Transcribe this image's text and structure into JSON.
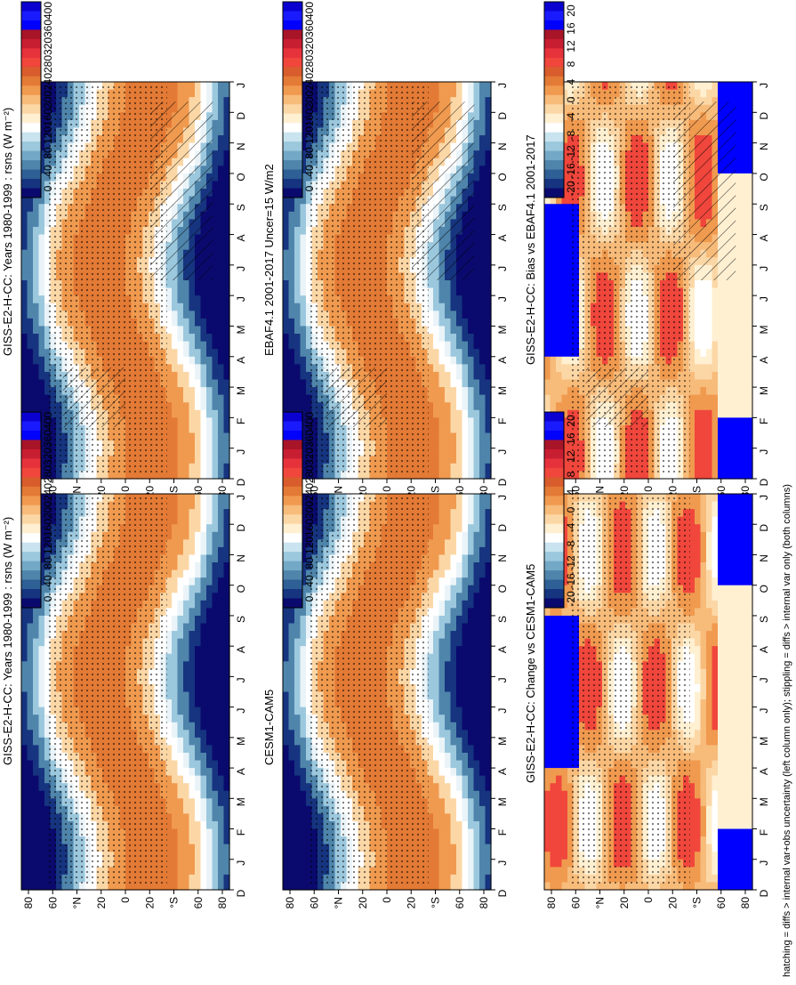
{
  "colormaps": {
    "rsns": [
      "#0a0a6e",
      "#16347f",
      "#2e5f95",
      "#4f85ab",
      "#73a8c6",
      "#9cc8de",
      "#c9e4ef",
      "#ffffff",
      "#fff0d2",
      "#fcd7a6",
      "#f7bb7a",
      "#f09a4f",
      "#e37a35",
      "#d95c2d",
      "#f0463c",
      "#e6323b",
      "#c81e32",
      "#a81428",
      "#0000ff",
      "#1a1aff",
      "#0a00d0"
    ],
    "diff": [
      "#0a0a6e",
      "#16347f",
      "#2e5f95",
      "#4f85ab",
      "#73a8c6",
      "#9cc8de",
      "#c9e4ef",
      "#ffffff",
      "#fff0d2",
      "#fcd7a6",
      "#f7bb7a",
      "#f09a4f",
      "#e37a35",
      "#d95c2d",
      "#f0463c",
      "#e6323b",
      "#c81e32",
      "#a81428",
      "#0000ff",
      "#1a1aff",
      "#0a00d0"
    ]
  },
  "footer_note": "hatching = diffs > internal var+obs uncertainty (left column only); stippling = diffs > internal var only (both columns)",
  "chart_data": [
    {
      "type": "heatmap",
      "title": "GISS-E2-H-CC: Years 1980-1999 : rsns (W m⁻²)",
      "x_ticks": [
        "D",
        "J",
        "F",
        "M",
        "A",
        "M",
        "J",
        "J",
        "A",
        "S",
        "O",
        "N",
        "D",
        "J"
      ],
      "y_ticks": [
        "80",
        "60",
        "°N",
        "20",
        "0",
        "20",
        "°S",
        "60",
        "80"
      ],
      "colorbar_ticks": [
        "400",
        "360",
        "320",
        "280",
        "240",
        "200",
        "160",
        "120",
        "80",
        "40",
        "0"
      ],
      "levels": [
        0,
        420
      ],
      "field": "rsns",
      "hatching": true,
      "stippling": true
    },
    {
      "type": "heatmap",
      "title": "GISS-E2-H-CC: Years 1980-1999 : rsns (W m⁻²)",
      "x_ticks": [
        "D",
        "J",
        "F",
        "M",
        "A",
        "M",
        "J",
        "J",
        "A",
        "S",
        "O",
        "N",
        "D",
        "J"
      ],
      "y_ticks": [
        "80",
        "60",
        "°N",
        "20",
        "0",
        "20",
        "°S",
        "60",
        "80"
      ],
      "colorbar_ticks": [
        "400",
        "360",
        "320",
        "280",
        "240",
        "200",
        "160",
        "120",
        "80",
        "40",
        "0"
      ],
      "levels": [
        0,
        420
      ],
      "field": "rsns",
      "hatching": false,
      "stippling": true
    },
    {
      "type": "heatmap",
      "title": "EBAF4.1 2001-2017 Uncer=15 W/m2",
      "x_ticks": [
        "D",
        "J",
        "F",
        "M",
        "A",
        "M",
        "J",
        "J",
        "A",
        "S",
        "O",
        "N",
        "D",
        "J"
      ],
      "y_ticks": [
        "80",
        "60",
        "°N",
        "20",
        "0",
        "20",
        "°S",
        "60",
        "80"
      ],
      "colorbar_ticks": [
        "400",
        "360",
        "320",
        "280",
        "240",
        "200",
        "160",
        "120",
        "80",
        "40",
        "0"
      ],
      "levels": [
        0,
        420
      ],
      "field": "rsns",
      "hatching": true,
      "stippling": true
    },
    {
      "type": "heatmap",
      "title": "CESM1-CAM5",
      "x_ticks": [
        "D",
        "J",
        "F",
        "M",
        "A",
        "M",
        "J",
        "J",
        "A",
        "S",
        "O",
        "N",
        "D",
        "J"
      ],
      "y_ticks": [
        "80",
        "60",
        "°N",
        "20",
        "0",
        "20",
        "°S",
        "60",
        "80"
      ],
      "colorbar_ticks": [
        "400",
        "360",
        "320",
        "280",
        "240",
        "200",
        "160",
        "120",
        "80",
        "40",
        "0"
      ],
      "levels": [
        0,
        420
      ],
      "field": "rsns",
      "hatching": false,
      "stippling": true
    },
    {
      "type": "heatmap",
      "title": "GISS-E2-H-CC: Bias vs EBAF4.1 2001-2017",
      "x_ticks": [
        "D",
        "J",
        "F",
        "M",
        "A",
        "M",
        "J",
        "J",
        "A",
        "S",
        "O",
        "N",
        "D",
        "J"
      ],
      "y_ticks": [
        "80",
        "60",
        "°N",
        "20",
        "0",
        "20",
        "°S",
        "60",
        "80"
      ],
      "colorbar_ticks": [
        "20",
        "16",
        "12",
        "8",
        "4",
        "0",
        "-4",
        "-8",
        "-12",
        "-16",
        "-20"
      ],
      "levels": [
        -22,
        22
      ],
      "field": "diff",
      "hatching": true,
      "stippling": true
    },
    {
      "type": "heatmap",
      "title": "GISS-E2-H-CC: Change vs CESM1-CAM5",
      "x_ticks": [
        "D",
        "J",
        "F",
        "M",
        "A",
        "M",
        "J",
        "J",
        "A",
        "S",
        "O",
        "N",
        "D",
        "J"
      ],
      "y_ticks": [
        "80",
        "60",
        "°N",
        "20",
        "0",
        "20",
        "°S",
        "60",
        "80"
      ],
      "colorbar_ticks": [
        "20",
        "16",
        "12",
        "8",
        "4",
        "0",
        "-4",
        "-8",
        "-12",
        "-16",
        "-20"
      ],
      "levels": [
        -22,
        22
      ],
      "field": "diff",
      "hatching": false,
      "stippling": true
    }
  ]
}
